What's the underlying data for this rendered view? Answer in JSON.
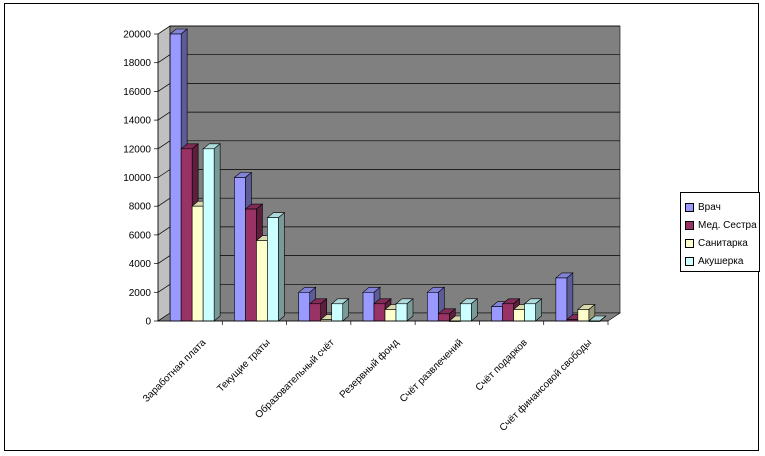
{
  "chart_data": {
    "type": "bar",
    "title": "",
    "xlabel": "",
    "ylabel": "",
    "ylim": [
      0,
      20000
    ],
    "yticks": [
      0,
      2000,
      4000,
      6000,
      8000,
      10000,
      12000,
      14000,
      16000,
      18000,
      20000
    ],
    "categories": [
      "Заработная плата",
      "Текущие траты",
      "Образовательный счёт",
      "Резервный фонд",
      "Счёт развлечений",
      "Счёт подарков",
      "Счёт финансовой свободы"
    ],
    "series": [
      {
        "name": "Врач",
        "color": "#9999ff",
        "values": [
          20000,
          10000,
          2000,
          2000,
          2000,
          1000,
          3000
        ]
      },
      {
        "name": "Мед. Сестра",
        "color": "#993366",
        "values": [
          12000,
          7800,
          1200,
          1200,
          500,
          1200,
          100
        ]
      },
      {
        "name": "Санитарка",
        "color": "#ffffcc",
        "values": [
          8000,
          5600,
          100,
          800,
          0,
          800,
          800
        ]
      },
      {
        "name": "Акушерка",
        "color": "#ccffff",
        "values": [
          12000,
          7200,
          1200,
          1200,
          1200,
          1200,
          0
        ]
      }
    ],
    "grid": true,
    "legend": "right",
    "style": "3d-clustered-bar"
  }
}
